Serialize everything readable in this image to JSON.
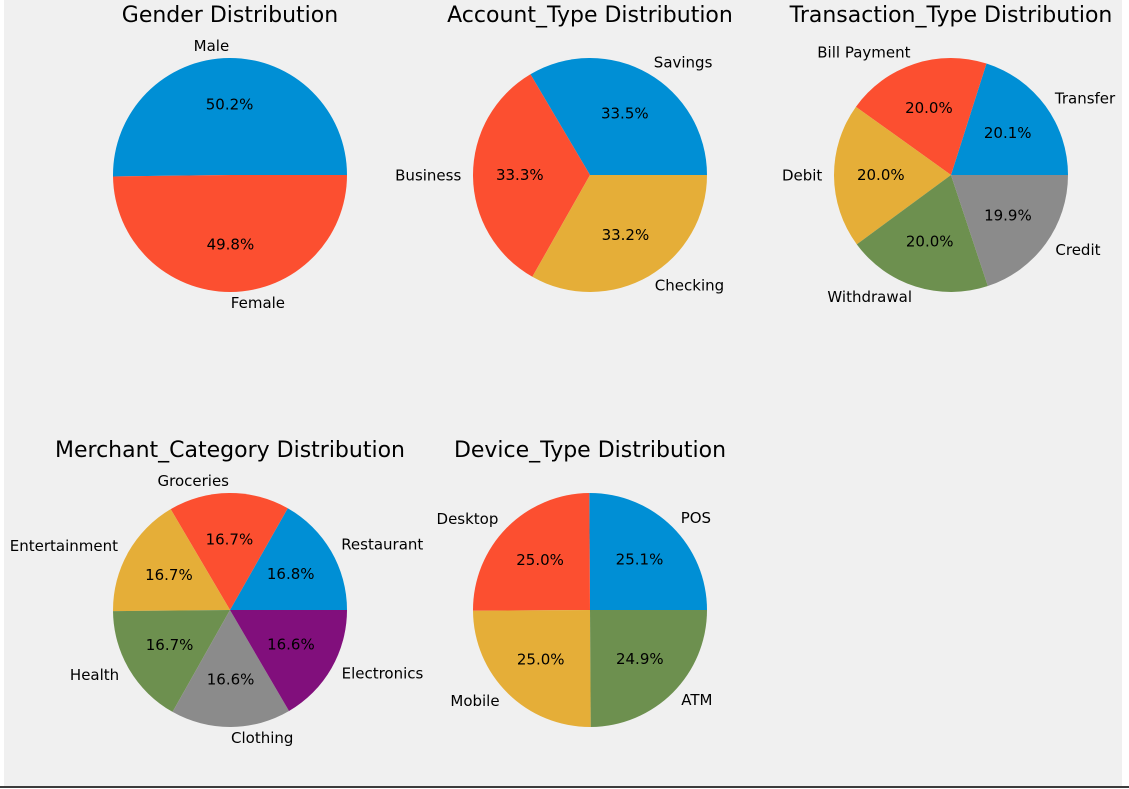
{
  "colors": {
    "background": "#f0f0f0",
    "palette": [
      "#008fd5",
      "#fc4f30",
      "#e5ae38",
      "#6d904f",
      "#8b8b8b",
      "#810f7c"
    ]
  },
  "chart_data": [
    {
      "type": "pie",
      "title": "Gender Distribution",
      "labels": [
        "Male",
        "Female"
      ],
      "values": [
        50.2,
        49.8
      ],
      "colors": [
        "#008fd5",
        "#fc4f30"
      ]
    },
    {
      "type": "pie",
      "title": "Account_Type Distribution",
      "labels": [
        "Savings",
        "Business",
        "Checking"
      ],
      "values": [
        33.5,
        33.3,
        33.2
      ],
      "colors": [
        "#008fd5",
        "#fc4f30",
        "#e5ae38"
      ]
    },
    {
      "type": "pie",
      "title": "Transaction_Type Distribution",
      "labels": [
        "Transfer",
        "Bill Payment",
        "Debit",
        "Withdrawal",
        "Credit"
      ],
      "values": [
        20.1,
        20.0,
        20.0,
        20.0,
        19.9
      ],
      "colors": [
        "#008fd5",
        "#fc4f30",
        "#e5ae38",
        "#6d904f",
        "#8b8b8b"
      ]
    },
    {
      "type": "pie",
      "title": "Merchant_Category Distribution",
      "labels": [
        "Restaurant",
        "Groceries",
        "Entertainment",
        "Health",
        "Clothing",
        "Electronics"
      ],
      "values": [
        16.8,
        16.7,
        16.7,
        16.7,
        16.6,
        16.6
      ],
      "colors": [
        "#008fd5",
        "#fc4f30",
        "#e5ae38",
        "#6d904f",
        "#8b8b8b",
        "#810f7c"
      ]
    },
    {
      "type": "pie",
      "title": "Device_Type Distribution",
      "labels": [
        "POS",
        "Desktop",
        "Mobile",
        "ATM"
      ],
      "values": [
        25.1,
        25.0,
        25.0,
        24.9
      ],
      "colors": [
        "#008fd5",
        "#fc4f30",
        "#e5ae38",
        "#6d904f"
      ]
    }
  ]
}
